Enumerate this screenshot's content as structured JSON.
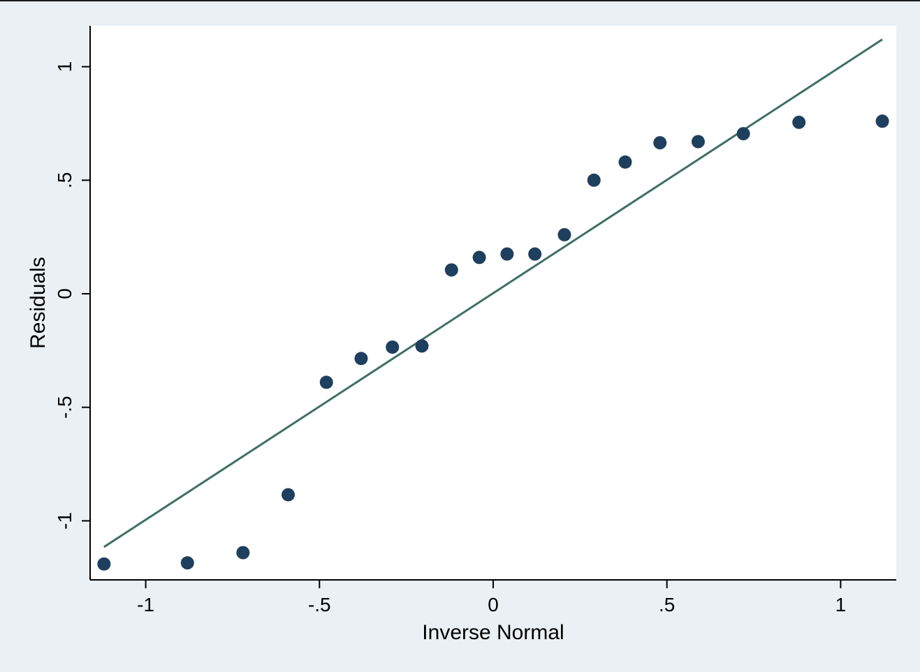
{
  "chart_data": {
    "type": "scatter",
    "title": "",
    "xlabel": "Inverse Normal",
    "ylabel": "Residuals",
    "xlim": [
      -1.16,
      1.16
    ],
    "ylim": [
      -1.26,
      1.18
    ],
    "x_ticks": [
      {
        "value": -1,
        "label": "-1"
      },
      {
        "value": -0.5,
        "label": "-.5"
      },
      {
        "value": 0,
        "label": "0"
      },
      {
        "value": 0.5,
        "label": ".5"
      },
      {
        "value": 1,
        "label": "1"
      }
    ],
    "y_ticks": [
      {
        "value": -1,
        "label": "-1"
      },
      {
        "value": -0.5,
        "label": "-.5"
      },
      {
        "value": 0,
        "label": "0"
      },
      {
        "value": 0.5,
        "label": ".5"
      },
      {
        "value": 1,
        "label": "1"
      }
    ],
    "grid": false,
    "points": [
      {
        "x": -1.12,
        "y": -1.19
      },
      {
        "x": -0.88,
        "y": -1.185
      },
      {
        "x": -0.72,
        "y": -1.14
      },
      {
        "x": -0.59,
        "y": -0.885
      },
      {
        "x": -0.48,
        "y": -0.39
      },
      {
        "x": -0.38,
        "y": -0.285
      },
      {
        "x": -0.29,
        "y": -0.235
      },
      {
        "x": -0.205,
        "y": -0.23
      },
      {
        "x": -0.12,
        "y": 0.105
      },
      {
        "x": -0.04,
        "y": 0.16
      },
      {
        "x": 0.04,
        "y": 0.175
      },
      {
        "x": 0.12,
        "y": 0.175
      },
      {
        "x": 0.205,
        "y": 0.26
      },
      {
        "x": 0.29,
        "y": 0.5
      },
      {
        "x": 0.38,
        "y": 0.58
      },
      {
        "x": 0.48,
        "y": 0.665
      },
      {
        "x": 0.59,
        "y": 0.67
      },
      {
        "x": 0.72,
        "y": 0.705
      },
      {
        "x": 0.88,
        "y": 0.755
      },
      {
        "x": 1.12,
        "y": 0.76
      }
    ],
    "reference_line": {
      "x": [
        -1.12,
        1.12
      ],
      "y": [
        -1.115,
        1.12
      ]
    },
    "colors": {
      "points": "#1e3f5e",
      "line": "#3f6f64",
      "plot_background": "#ffffff",
      "figure_background": "#eaf0f3",
      "axis": "#000000"
    }
  }
}
